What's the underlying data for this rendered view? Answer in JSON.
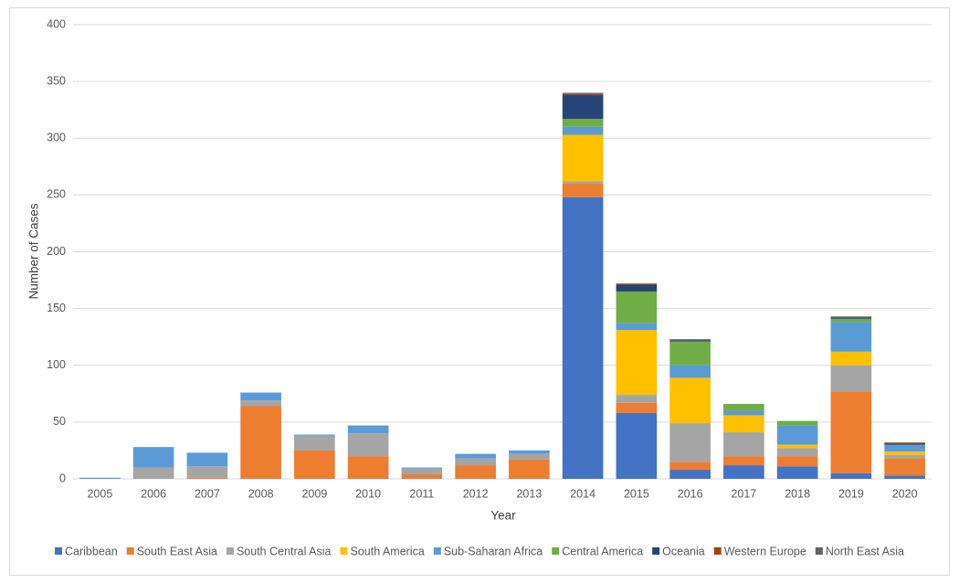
{
  "chart_data": {
    "type": "stacked_bar",
    "x_label": "Year",
    "y_label": "Number of Cases",
    "categories": [
      "2005",
      "2006",
      "2007",
      "2008",
      "2009",
      "2010",
      "2011",
      "2012",
      "2013",
      "2014",
      "2015",
      "2016",
      "2017",
      "2018",
      "2019",
      "2020"
    ],
    "series": [
      {
        "name": "Caribbean",
        "color": "#4472c4",
        "values": [
          0,
          0,
          0,
          0,
          0,
          0,
          0,
          0,
          0,
          248,
          58,
          8,
          12,
          11,
          5,
          3
        ]
      },
      {
        "name": "South East Asia",
        "color": "#ed7d31",
        "values": [
          0,
          0,
          1,
          64,
          25,
          20,
          4,
          12,
          17,
          12,
          9,
          7,
          8,
          9,
          72,
          15
        ]
      },
      {
        "name": "South Central Asia",
        "color": "#a5a5a5",
        "values": [
          0,
          10,
          10,
          5,
          13,
          20,
          5,
          6,
          5,
          2,
          7,
          34,
          21,
          7,
          23,
          3
        ]
      },
      {
        "name": "South America",
        "color": "#ffc000",
        "values": [
          0,
          0,
          0,
          0,
          0,
          0,
          0,
          0,
          0,
          41,
          57,
          40,
          15,
          3,
          12,
          3
        ]
      },
      {
        "name": "Sub-Saharan Africa",
        "color": "#5b9bd5",
        "values": [
          1,
          18,
          12,
          7,
          1,
          7,
          1,
          4,
          3,
          7,
          6,
          11,
          4,
          17,
          26,
          6
        ]
      },
      {
        "name": "Central America",
        "color": "#70ad47",
        "values": [
          0,
          0,
          0,
          0,
          0,
          0,
          0,
          0,
          0,
          7,
          28,
          21,
          6,
          4,
          3,
          0
        ]
      },
      {
        "name": "Oceania",
        "color": "#264478",
        "values": [
          0,
          0,
          0,
          0,
          0,
          0,
          0,
          0,
          0,
          21,
          6,
          1,
          0,
          0,
          1,
          1
        ]
      },
      {
        "name": "Western Europe",
        "color": "#9e480e",
        "values": [
          0,
          0,
          0,
          0,
          0,
          0,
          0,
          0,
          0,
          1,
          1,
          0,
          0,
          0,
          0,
          1
        ]
      },
      {
        "name": "North East Asia",
        "color": "#636363",
        "values": [
          0,
          0,
          0,
          0,
          0,
          0,
          0,
          0,
          0,
          1,
          0,
          1,
          0,
          0,
          1,
          0
        ]
      }
    ],
    "ylim": [
      0,
      400
    ],
    "yticks": [
      0,
      50,
      100,
      150,
      200,
      250,
      300,
      350,
      400
    ],
    "grid": true
  }
}
